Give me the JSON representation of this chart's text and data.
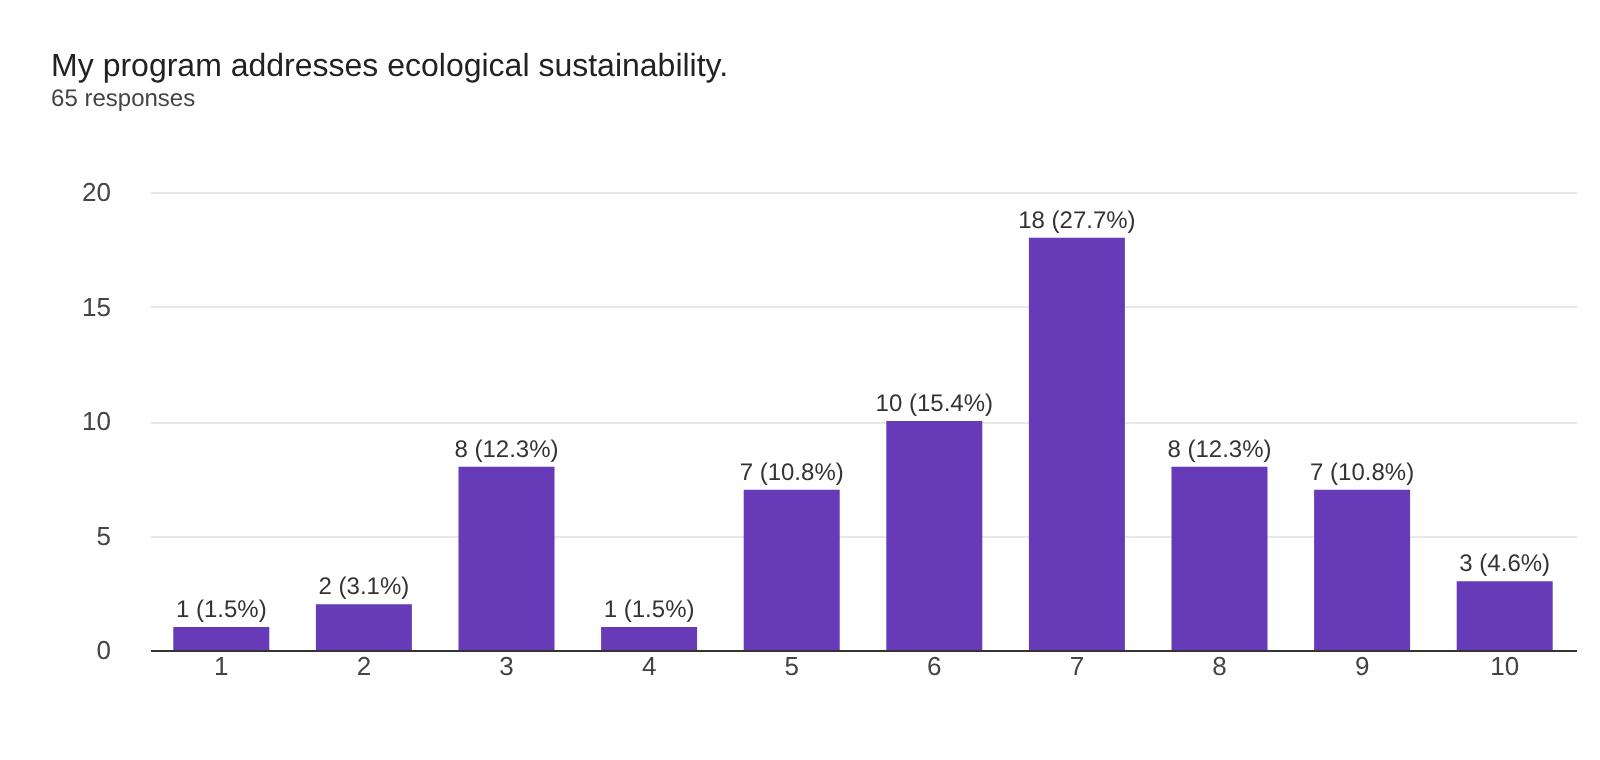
{
  "chart_data": {
    "type": "bar",
    "title": "My program addresses ecological sustainability.",
    "subtitle": "65 responses",
    "categories": [
      "1",
      "2",
      "3",
      "4",
      "5",
      "6",
      "7",
      "8",
      "9",
      "10"
    ],
    "values": [
      1,
      2,
      8,
      1,
      7,
      10,
      18,
      8,
      7,
      3
    ],
    "value_labels": [
      "1 (1.5%)",
      "2 (3.1%)",
      "8 (12.3%)",
      "1 (1.5%)",
      "7 (10.8%)",
      "10 (15.4%)",
      "18 (27.7%)",
      "8 (12.3%)",
      "7 (10.8%)",
      "3 (4.6%)"
    ],
    "color": "#673ab7",
    "ylim": [
      0,
      20
    ],
    "yticks": [
      0,
      5,
      10,
      15,
      20
    ],
    "grid": "y"
  }
}
